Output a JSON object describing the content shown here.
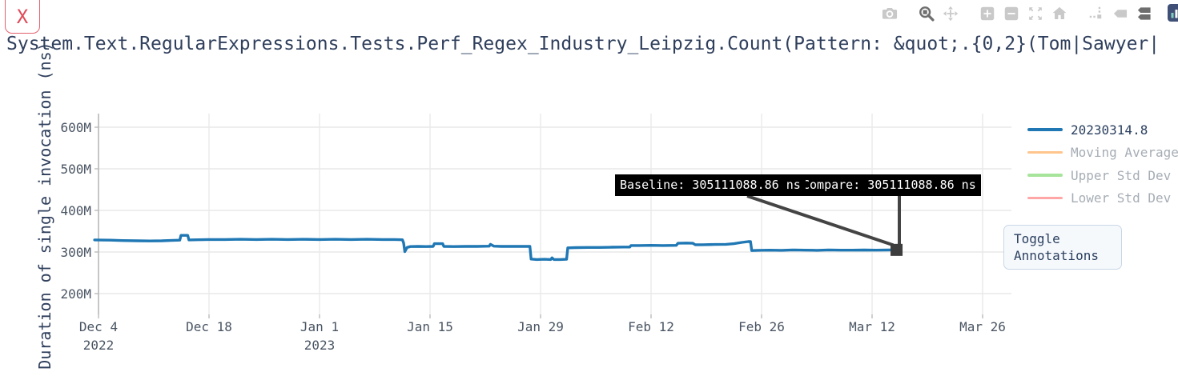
{
  "ui": {
    "close_label": "X",
    "toggle_annotations_label": "Toggle Annotations"
  },
  "colors": {
    "accent_blue": "#1f77b4",
    "title_text": "#2f3f5c",
    "tick_text": "#4a5563",
    "grid": "#e9e9e9",
    "axis_line": "#bbbbbb",
    "annotation_bg": "#000000",
    "annotation_text": "#ffffff",
    "arrow": "#444444",
    "marker": "#3d3d3d",
    "close_red": "#e04b59",
    "modebar_inactive": "#c9c9c9",
    "modebar_active": "#6e6e6e"
  },
  "modebar": {
    "groups": [
      [
        "camera"
      ],
      [
        "zoom",
        "pan"
      ],
      [
        "zoom-in",
        "zoom-out",
        "autoscale",
        "reset-home"
      ],
      [
        "spikelines",
        "hover-closest",
        "hover-compare"
      ]
    ],
    "active": [
      "zoom",
      "hover-compare"
    ],
    "logo": "plotly-logo"
  },
  "chart_data": {
    "type": "line",
    "title": "System.Text.RegularExpressions.Tests.Perf_Regex_Industry_Leipzig.Count(Pattern: &quot;.{0,2}(Tom|Sawyer|",
    "ylabel": "Duration of single invocation (ns)",
    "x_axis": {
      "tick_labels": [
        "Dec 4",
        "Dec 18",
        "Jan 1",
        "Jan 15",
        "Jan 29",
        "Feb 12",
        "Feb 26",
        "Mar 12",
        "Mar 26"
      ],
      "tick_days": [
        0,
        14,
        28,
        42,
        56,
        70,
        84,
        98,
        112
      ],
      "year_labels": [
        {
          "text": "2022",
          "day": 0
        },
        {
          "text": "2023",
          "day": 28
        }
      ],
      "range_days": [
        -0.5,
        115.7
      ]
    },
    "y_axis": {
      "tick_labels": [
        "200M",
        "300M",
        "400M",
        "500M",
        "600M"
      ],
      "tick_values": [
        200,
        300,
        400,
        500,
        600
      ],
      "range": [
        150,
        633
      ],
      "unit": "M ns"
    },
    "grid": true,
    "legend_position": "right",
    "series": [
      {
        "name": "20230314.8",
        "color": "#1f77b4",
        "visible": true,
        "points": [
          [
            -0.5,
            329
          ],
          [
            1.5,
            328.5
          ],
          [
            3,
            327.5
          ],
          [
            5,
            327
          ],
          [
            6.5,
            326.5
          ],
          [
            8,
            327
          ],
          [
            9.5,
            328
          ],
          [
            10.3,
            328.5
          ],
          [
            10.45,
            340
          ],
          [
            11.3,
            340
          ],
          [
            11.45,
            329
          ],
          [
            12.5,
            329.5
          ],
          [
            14,
            330
          ],
          [
            16,
            330
          ],
          [
            18,
            330.5
          ],
          [
            20,
            330
          ],
          [
            22,
            330.5
          ],
          [
            24,
            330
          ],
          [
            26,
            330.5
          ],
          [
            28,
            330
          ],
          [
            30,
            330.5
          ],
          [
            32,
            330
          ],
          [
            34,
            330.5
          ],
          [
            36,
            330
          ],
          [
            37.5,
            330
          ],
          [
            38.5,
            329.5
          ],
          [
            38.65,
            322
          ],
          [
            38.8,
            301
          ],
          [
            39.1,
            311
          ],
          [
            39.5,
            313
          ],
          [
            40.5,
            313.5
          ],
          [
            41.5,
            313
          ],
          [
            42.4,
            313.5
          ],
          [
            42.55,
            320
          ],
          [
            43.6,
            320
          ],
          [
            43.75,
            313.5
          ],
          [
            45,
            313
          ],
          [
            46.5,
            313.5
          ],
          [
            48,
            313.5
          ],
          [
            49.5,
            314
          ],
          [
            49.65,
            318.5
          ],
          [
            50.1,
            314
          ],
          [
            51,
            313.5
          ],
          [
            52.5,
            313.5
          ],
          [
            54,
            313.5
          ],
          [
            54.65,
            313.5
          ],
          [
            54.8,
            283
          ],
          [
            55.5,
            282
          ],
          [
            56.5,
            282.5
          ],
          [
            57.3,
            282
          ],
          [
            57.45,
            286
          ],
          [
            57.7,
            282
          ],
          [
            58.5,
            282
          ],
          [
            59.3,
            282.5
          ],
          [
            59.45,
            310
          ],
          [
            60.5,
            310.5
          ],
          [
            62,
            311
          ],
          [
            63.5,
            311
          ],
          [
            65,
            311.5
          ],
          [
            66.5,
            312
          ],
          [
            67.3,
            312
          ],
          [
            67.45,
            315.5
          ],
          [
            68.5,
            315.5
          ],
          [
            70,
            316
          ],
          [
            71.5,
            315.5
          ],
          [
            73.2,
            316
          ],
          [
            73.4,
            321
          ],
          [
            74.5,
            321.5
          ],
          [
            75.3,
            321
          ],
          [
            75.6,
            317.5
          ],
          [
            76.5,
            317.5
          ],
          [
            78,
            318
          ],
          [
            79.5,
            318.5
          ],
          [
            80.5,
            320
          ],
          [
            81.5,
            323
          ],
          [
            82.3,
            325
          ],
          [
            82.6,
            325
          ],
          [
            82.75,
            303.5
          ],
          [
            83.5,
            304
          ],
          [
            85,
            304.5
          ],
          [
            86.5,
            304
          ],
          [
            88,
            305
          ],
          [
            89.5,
            304.5
          ],
          [
            91,
            304
          ],
          [
            92.5,
            305
          ],
          [
            94,
            304.5
          ],
          [
            95.5,
            304.5
          ],
          [
            97,
            304.8
          ],
          [
            98.5,
            304.5
          ],
          [
            100,
            304.8
          ],
          [
            101.1,
            305.1
          ]
        ]
      },
      {
        "name": "Moving Average",
        "color": "#ffbb78",
        "visible": false,
        "points": []
      },
      {
        "name": "Upper Std Dev",
        "color": "#98df8a",
        "visible": false,
        "points": []
      },
      {
        "name": "Lower Std Dev",
        "color": "#ff9896",
        "visible": false,
        "points": []
      }
    ],
    "annotations": [
      {
        "text": "Baseline: 305111088.86 ns",
        "target_day": 101.1,
        "target_value": 305.1
      },
      {
        "text": "Compare: 305111088.86 ns",
        "target_day": 101.1,
        "target_value": 305.1
      }
    ]
  }
}
